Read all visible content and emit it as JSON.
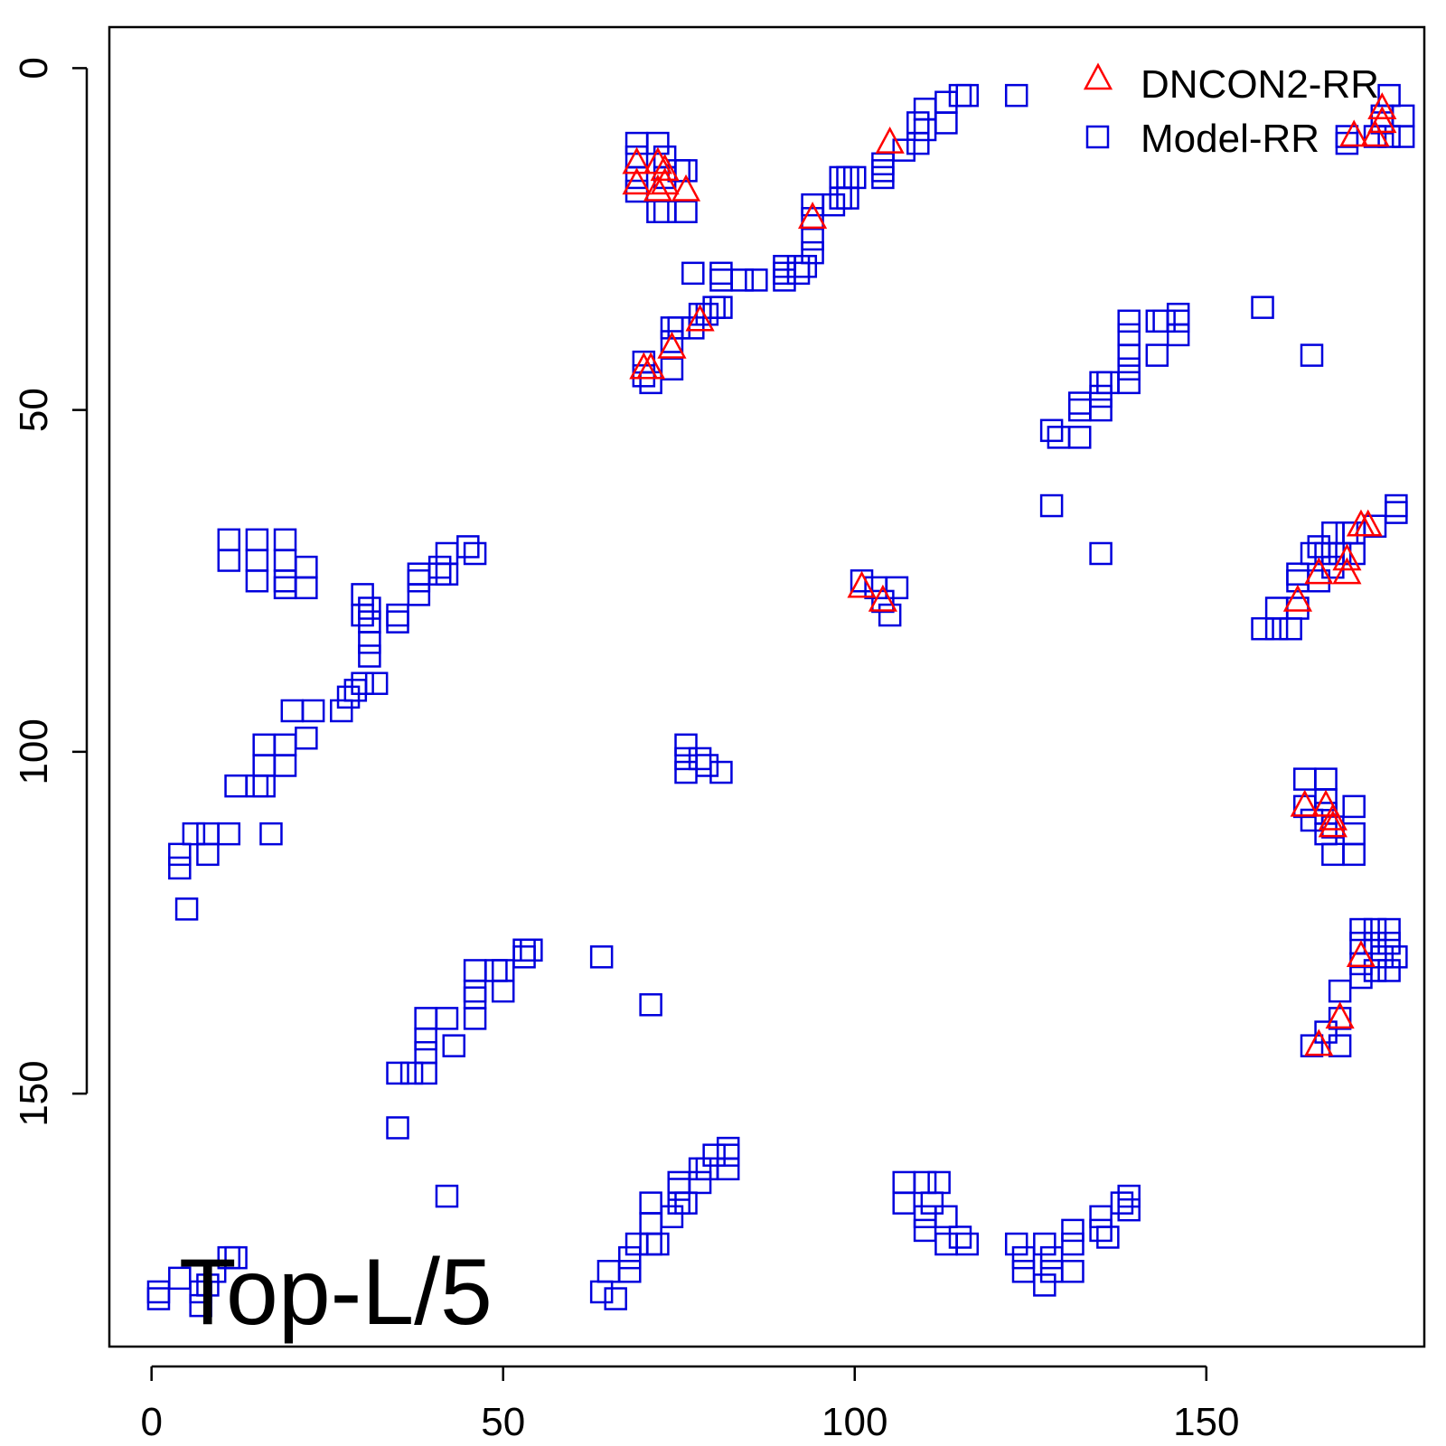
{
  "chart_data": {
    "type": "scatter",
    "title": "",
    "xlabel": "",
    "ylabel": "",
    "xlim": [
      -6,
      181
    ],
    "ylim": [
      -6,
      187
    ],
    "y_reversed": true,
    "grid": false,
    "x_ticks": [
      0,
      50,
      100,
      150
    ],
    "y_ticks": [
      0,
      50,
      100,
      150
    ],
    "legend_position": "top-right",
    "annotation": "Top-L/5",
    "series": [
      {
        "name": "DNCON2-RR",
        "marker": "triangle",
        "color": "#ff0000",
        "points": [
          [
            69,
            14
          ],
          [
            72,
            14
          ],
          [
            73,
            15
          ],
          [
            69,
            17
          ],
          [
            73,
            17
          ],
          [
            72,
            18
          ],
          [
            76,
            18
          ],
          [
            105,
            11
          ],
          [
            94,
            22
          ],
          [
            78,
            37
          ],
          [
            74,
            41
          ],
          [
            71,
            44
          ],
          [
            70,
            44
          ],
          [
            101,
            76
          ],
          [
            104,
            78
          ],
          [
            163,
            78
          ],
          [
            166,
            74
          ],
          [
            170,
            72
          ],
          [
            170,
            74
          ],
          [
            172,
            67
          ],
          [
            173,
            67
          ],
          [
            164,
            108
          ],
          [
            167,
            108
          ],
          [
            168,
            110
          ],
          [
            168,
            111
          ],
          [
            166,
            143
          ],
          [
            169,
            139
          ],
          [
            172,
            130
          ],
          [
            171,
            10
          ],
          [
            174,
            10
          ],
          [
            175,
            8
          ],
          [
            175,
            6
          ]
        ]
      },
      {
        "name": "Model-RR",
        "marker": "square",
        "color": "#0000dd",
        "points": [
          [
            1,
            179
          ],
          [
            1,
            180
          ],
          [
            4,
            177
          ],
          [
            7,
            179
          ],
          [
            8,
            178
          ],
          [
            11,
            174
          ],
          [
            12,
            174
          ],
          [
            9,
            176
          ],
          [
            7,
            181
          ],
          [
            4,
            115
          ],
          [
            4,
            117
          ],
          [
            6,
            112
          ],
          [
            8,
            112
          ],
          [
            8,
            115
          ],
          [
            11,
            112
          ],
          [
            17,
            112
          ],
          [
            5,
            123
          ],
          [
            12,
            105
          ],
          [
            15,
            105
          ],
          [
            16,
            105
          ],
          [
            16,
            102
          ],
          [
            16,
            99
          ],
          [
            19,
            99
          ],
          [
            19,
            102
          ],
          [
            20,
            94
          ],
          [
            22,
            98
          ],
          [
            23,
            94
          ],
          [
            27,
            94
          ],
          [
            28,
            92
          ],
          [
            29,
            91
          ],
          [
            32,
            90
          ],
          [
            30,
            90
          ],
          [
            31,
            86
          ],
          [
            31,
            84
          ],
          [
            31,
            81
          ],
          [
            30,
            80
          ],
          [
            31,
            79
          ],
          [
            30,
            77
          ],
          [
            35,
            81
          ],
          [
            35,
            80
          ],
          [
            38,
            77
          ],
          [
            38,
            75
          ],
          [
            38,
            74
          ],
          [
            41,
            74
          ],
          [
            42,
            71
          ],
          [
            42,
            74
          ],
          [
            41,
            73
          ],
          [
            45,
            70
          ],
          [
            46,
            71
          ],
          [
            11,
            69
          ],
          [
            11,
            72
          ],
          [
            15,
            69
          ],
          [
            19,
            69
          ],
          [
            15,
            72
          ],
          [
            15,
            75
          ],
          [
            19,
            75
          ],
          [
            19,
            72
          ],
          [
            22,
            73
          ],
          [
            22,
            76
          ],
          [
            19,
            76
          ],
          [
            35,
            147
          ],
          [
            37,
            147
          ],
          [
            39,
            147
          ],
          [
            39,
            144
          ],
          [
            39,
            142
          ],
          [
            39,
            139
          ],
          [
            42,
            139
          ],
          [
            43,
            143
          ],
          [
            46,
            139
          ],
          [
            46,
            136
          ],
          [
            46,
            135
          ],
          [
            46,
            132
          ],
          [
            49,
            132
          ],
          [
            50,
            132
          ],
          [
            50,
            135
          ],
          [
            53,
            130
          ],
          [
            53,
            129
          ],
          [
            54,
            129
          ],
          [
            35,
            155
          ],
          [
            42,
            165
          ],
          [
            64,
            130
          ],
          [
            71,
            137
          ],
          [
            64,
            179
          ],
          [
            65,
            176
          ],
          [
            66,
            180
          ],
          [
            68,
            176
          ],
          [
            68,
            174
          ],
          [
            69,
            172
          ],
          [
            71,
            172
          ],
          [
            72,
            172
          ],
          [
            71,
            169
          ],
          [
            71,
            166
          ],
          [
            74,
            168
          ],
          [
            75,
            166
          ],
          [
            76,
            166
          ],
          [
            75,
            163
          ],
          [
            75,
            164
          ],
          [
            78,
            163
          ],
          [
            78,
            161
          ],
          [
            79,
            161
          ],
          [
            80,
            159
          ],
          [
            82,
            161
          ],
          [
            82,
            159
          ],
          [
            82,
            158
          ],
          [
            69,
            11
          ],
          [
            69,
            13
          ],
          [
            69,
            16
          ],
          [
            69,
            18
          ],
          [
            72,
            11
          ],
          [
            73,
            13
          ],
          [
            73,
            16
          ],
          [
            73,
            21
          ],
          [
            72,
            21
          ],
          [
            75,
            15
          ],
          [
            76,
            15
          ],
          [
            76,
            21
          ],
          [
            70,
            45
          ],
          [
            70,
            43
          ],
          [
            71,
            46
          ],
          [
            74,
            40
          ],
          [
            74,
            44
          ],
          [
            74,
            38
          ],
          [
            75,
            38
          ],
          [
            78,
            36
          ],
          [
            77,
            38
          ],
          [
            79,
            36
          ],
          [
            80,
            35
          ],
          [
            81,
            35
          ],
          [
            77,
            30
          ],
          [
            81,
            30
          ],
          [
            81,
            31
          ],
          [
            84,
            31
          ],
          [
            86,
            31
          ],
          [
            90,
            31
          ],
          [
            90,
            30
          ],
          [
            90,
            29
          ],
          [
            92,
            30
          ],
          [
            92,
            29
          ],
          [
            93,
            29
          ],
          [
            94,
            27
          ],
          [
            94,
            25
          ],
          [
            94,
            22
          ],
          [
            94,
            20
          ],
          [
            97,
            20
          ],
          [
            98,
            19
          ],
          [
            98,
            16
          ],
          [
            99,
            19
          ],
          [
            99,
            16
          ],
          [
            100,
            16
          ],
          [
            104,
            16
          ],
          [
            104,
            15
          ],
          [
            104,
            14
          ],
          [
            107,
            12
          ],
          [
            109,
            11
          ],
          [
            110,
            9
          ],
          [
            109,
            8
          ],
          [
            110,
            6
          ],
          [
            113,
            5
          ],
          [
            113,
            8
          ],
          [
            115,
            4
          ],
          [
            116,
            4
          ],
          [
            123,
            4
          ],
          [
            101,
            75
          ],
          [
            103,
            76
          ],
          [
            104,
            78
          ],
          [
            105,
            80
          ],
          [
            106,
            76
          ],
          [
            76,
            99
          ],
          [
            76,
            101
          ],
          [
            76,
            103
          ],
          [
            78,
            101
          ],
          [
            79,
            102
          ],
          [
            81,
            103
          ],
          [
            107,
            163
          ],
          [
            107,
            166
          ],
          [
            110,
            163
          ],
          [
            112,
            163
          ],
          [
            110,
            168
          ],
          [
            111,
            166
          ],
          [
            110,
            170
          ],
          [
            113,
            168
          ],
          [
            115,
            171
          ],
          [
            113,
            172
          ],
          [
            116,
            172
          ],
          [
            123,
            172
          ],
          [
            124,
            174
          ],
          [
            124,
            176
          ],
          [
            127,
            172
          ],
          [
            128,
            174
          ],
          [
            128,
            176
          ],
          [
            127,
            178
          ],
          [
            131,
            176
          ],
          [
            131,
            172
          ],
          [
            131,
            170
          ],
          [
            135,
            170
          ],
          [
            136,
            171
          ],
          [
            135,
            168
          ],
          [
            138,
            166
          ],
          [
            139,
            165
          ],
          [
            139,
            167
          ],
          [
            128,
            53
          ],
          [
            129,
            54
          ],
          [
            132,
            54
          ],
          [
            132,
            50
          ],
          [
            132,
            49
          ],
          [
            135,
            50
          ],
          [
            135,
            48
          ],
          [
            135,
            46
          ],
          [
            136,
            46
          ],
          [
            139,
            46
          ],
          [
            139,
            44
          ],
          [
            139,
            42
          ],
          [
            139,
            39
          ],
          [
            139,
            37
          ],
          [
            143,
            37
          ],
          [
            144,
            37
          ],
          [
            143,
            42
          ],
          [
            146,
            39
          ],
          [
            146,
            37
          ],
          [
            146,
            36
          ],
          [
            128,
            64
          ],
          [
            135,
            71
          ],
          [
            158,
            35
          ],
          [
            165,
            42
          ],
          [
            158,
            82
          ],
          [
            160,
            82
          ],
          [
            162,
            82
          ],
          [
            160,
            79
          ],
          [
            163,
            79
          ],
          [
            163,
            75
          ],
          [
            163,
            74
          ],
          [
            166,
            75
          ],
          [
            165,
            71
          ],
          [
            167,
            71
          ],
          [
            166,
            70
          ],
          [
            168,
            73
          ],
          [
            169,
            71
          ],
          [
            168,
            68
          ],
          [
            170,
            68
          ],
          [
            171,
            68
          ],
          [
            171,
            71
          ],
          [
            174,
            67
          ],
          [
            177,
            65
          ],
          [
            177,
            64
          ],
          [
            164,
            104
          ],
          [
            164,
            108
          ],
          [
            165,
            110
          ],
          [
            167,
            104
          ],
          [
            167,
            107
          ],
          [
            167,
            109
          ],
          [
            167,
            112
          ],
          [
            168,
            111
          ],
          [
            168,
            115
          ],
          [
            171,
            108
          ],
          [
            171,
            112
          ],
          [
            171,
            115
          ],
          [
            165,
            143
          ],
          [
            167,
            141
          ],
          [
            169,
            139
          ],
          [
            169,
            143
          ],
          [
            169,
            135
          ],
          [
            172,
            133
          ],
          [
            172,
            131
          ],
          [
            172,
            128
          ],
          [
            172,
            126
          ],
          [
            174,
            126
          ],
          [
            174,
            128
          ],
          [
            175,
            130
          ],
          [
            176,
            126
          ],
          [
            176,
            128
          ],
          [
            177,
            130
          ],
          [
            176,
            132
          ],
          [
            174,
            132
          ],
          [
            170,
            11
          ],
          [
            170,
            10
          ],
          [
            174,
            10
          ],
          [
            175,
            8
          ],
          [
            175,
            7
          ],
          [
            176,
            4
          ],
          [
            176,
            10
          ],
          [
            178,
            7
          ],
          [
            178,
            10
          ]
        ]
      }
    ]
  }
}
